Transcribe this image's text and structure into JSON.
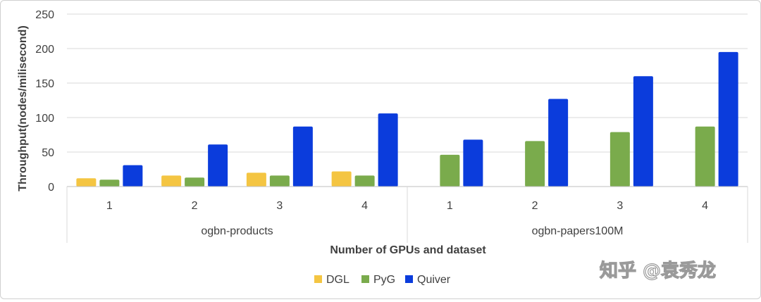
{
  "chart_data": {
    "type": "bar",
    "title": "",
    "ylabel": "Throughput(nodes/milisecond)",
    "xlabel": "Number of GPUs and dataset",
    "ylim": [
      0,
      250
    ],
    "yticks": [
      0,
      50,
      100,
      150,
      200,
      250
    ],
    "groups": [
      {
        "name": "ogbn-products",
        "categories": [
          "1",
          "2",
          "3",
          "4"
        ]
      },
      {
        "name": "ogbn-papers100M",
        "categories": [
          "1",
          "2",
          "3",
          "4"
        ]
      }
    ],
    "series": [
      {
        "name": "DGL",
        "color": "#f4c542",
        "values": [
          12,
          16,
          20,
          22,
          null,
          null,
          null,
          null
        ]
      },
      {
        "name": "PyG",
        "color": "#7aab4c",
        "values": [
          10,
          13,
          16,
          16,
          46,
          66,
          79,
          87
        ]
      },
      {
        "name": "Quiver",
        "color": "#0b3cdc",
        "values": [
          31,
          61,
          87,
          106,
          68,
          127,
          160,
          195
        ]
      }
    ],
    "grid": true,
    "legend_position": "bottom"
  },
  "watermark": "知乎 @袁秀龙"
}
